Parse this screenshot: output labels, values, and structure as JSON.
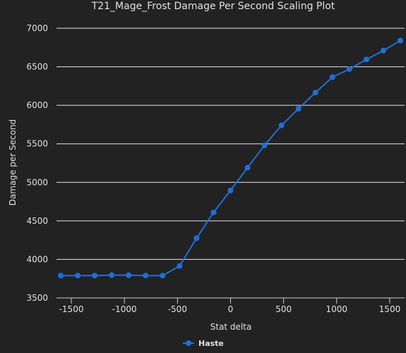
{
  "chart_data": {
    "type": "line",
    "title": "T21_Mage_Frost Damage Per Second Scaling Plot",
    "xlabel": "Stat delta",
    "ylabel": "Damage per Second",
    "xlim": [
      -1640,
      1640
    ],
    "ylim": [
      3500,
      7000
    ],
    "x_ticks": [
      -1500,
      -1000,
      -500,
      0,
      500,
      1000,
      1500
    ],
    "x_tick_labels": [
      "-1500",
      "-1000",
      "-500",
      "0",
      "500",
      "1000",
      "1500"
    ],
    "y_ticks": [
      3500,
      4000,
      4500,
      5000,
      5500,
      6000,
      6500,
      7000
    ],
    "y_tick_labels": [
      "3500",
      "4000",
      "4500",
      "5000",
      "5500",
      "6000",
      "6500",
      "7000"
    ],
    "grid": true,
    "legend_position": "bottom-center",
    "series": [
      {
        "name": "Haste",
        "color": "#1e6fd9",
        "x": [
          -1600,
          -1440,
          -1280,
          -1120,
          -960,
          -800,
          -640,
          -480,
          -320,
          -160,
          0,
          160,
          320,
          480,
          640,
          800,
          960,
          1120,
          1280,
          1440,
          1600
        ],
        "values": [
          3790,
          3790,
          3790,
          3795,
          3795,
          3790,
          3790,
          3915,
          4275,
          4610,
          4895,
          5190,
          5480,
          5740,
          5955,
          6165,
          6365,
          6470,
          6595,
          6710,
          6840
        ]
      }
    ]
  }
}
